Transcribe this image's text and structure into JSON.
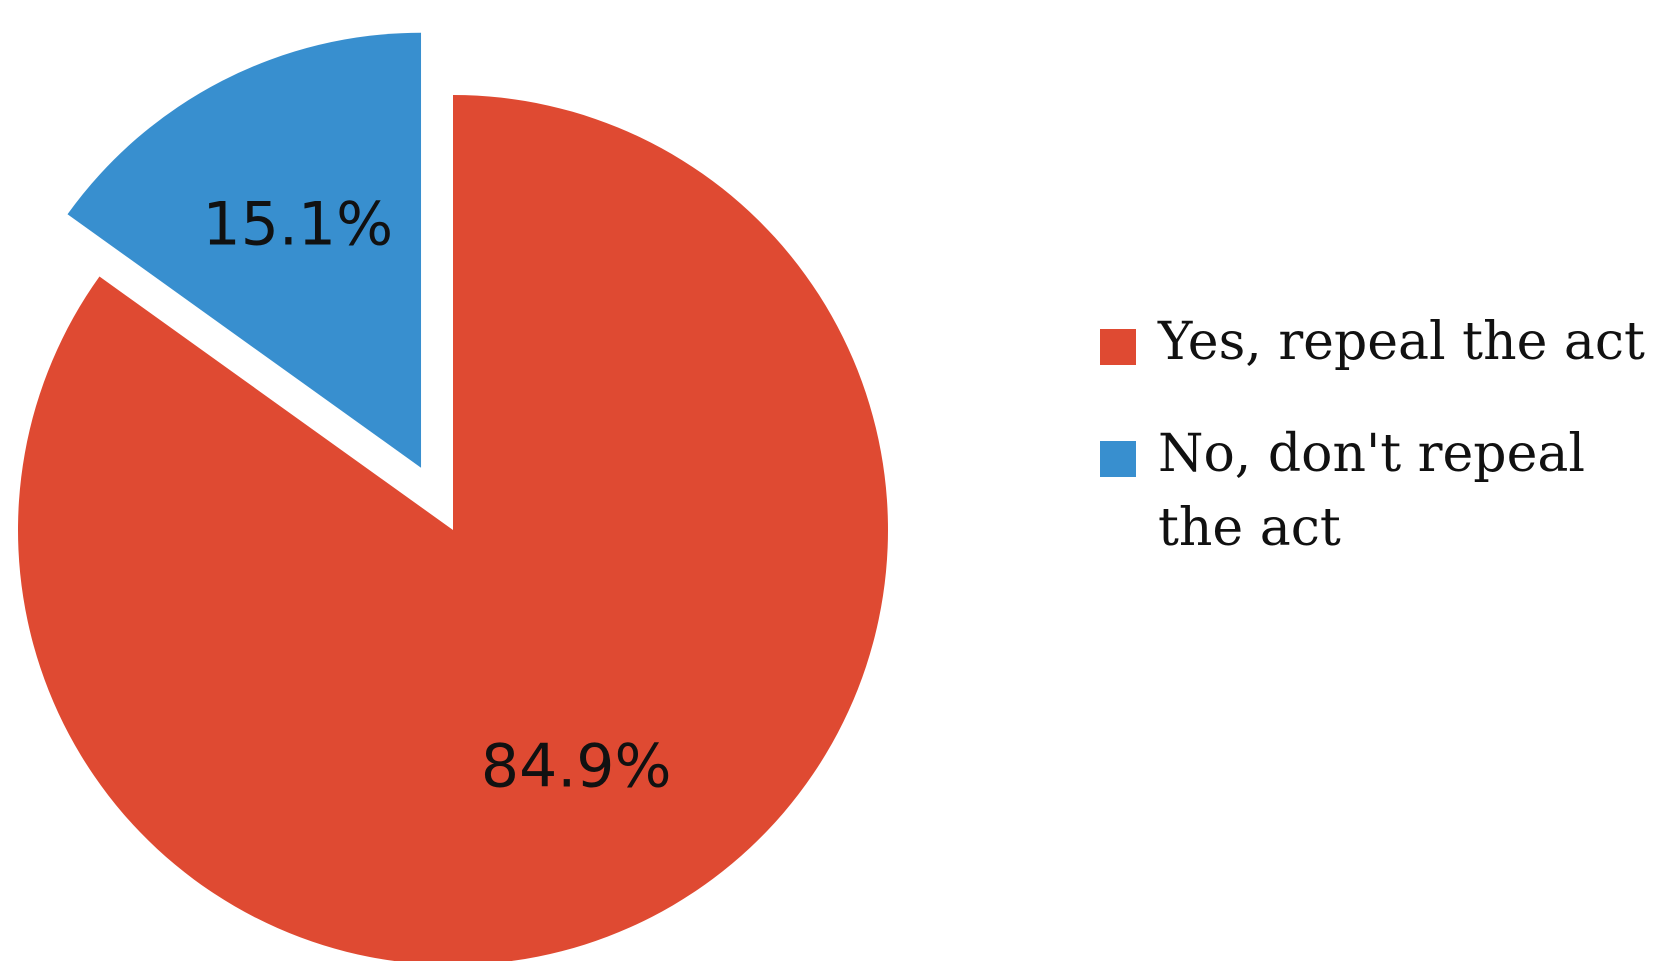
{
  "chart_data": {
    "type": "pie",
    "slices": [
      {
        "name": "Yes, repeal the act",
        "value": 84.9,
        "label": "84.9%",
        "color": "#df4a32"
      },
      {
        "name": "No, don't repeal the act",
        "value": 15.1,
        "label": "15.1%",
        "color": "#388fcf"
      }
    ],
    "exploded": [
      "No, don't repeal the act"
    ],
    "legend_position": "right"
  }
}
